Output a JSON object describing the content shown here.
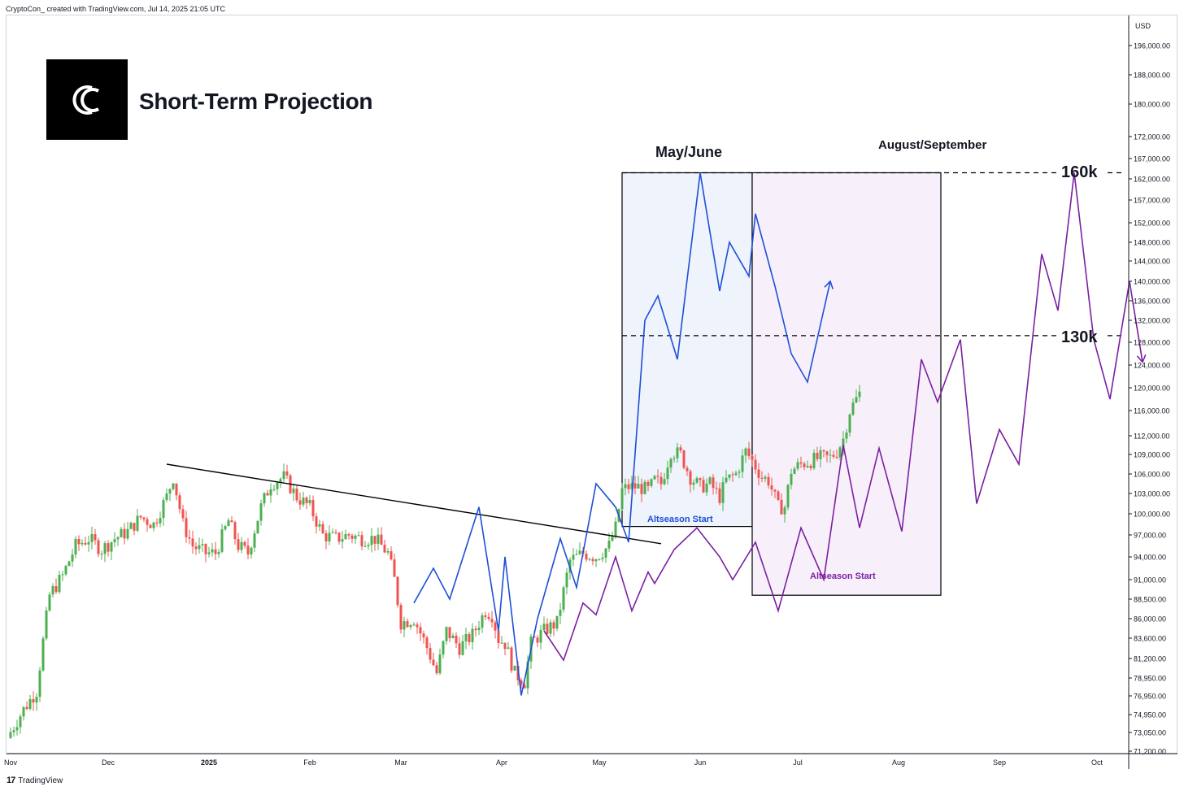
{
  "header": {
    "credit": "CryptoCon_ created with TradingView.com, Jul 14, 2025 21:05 UTC"
  },
  "footer": {
    "brand": "TradingView",
    "logo": "17"
  },
  "brand": {
    "title": "Short-Term Projection",
    "logo_icon": "cc-logo-icon"
  },
  "labels": {
    "may_june": "May/June",
    "aug_sep": "August/September",
    "level_160k": "160k",
    "level_130k": "130k",
    "altseason_1": "Altseason Start",
    "altseason_2": "Altseason Start"
  },
  "colors": {
    "up": "#26a69a",
    "up_fill": "#4caf50",
    "down": "#ef5350",
    "blue": "#1e4fd6",
    "purple": "#7b1fa2",
    "box_blue": "#eef3fc",
    "box_purple": "#f7f0fa"
  },
  "chart_data": {
    "type": "candlestick",
    "title": "Short-Term Projection",
    "currency_label": "USD",
    "y_ticks": [
      {
        "value": 196000,
        "label": "196,000.00"
      },
      {
        "value": 188000,
        "label": "188,000.00"
      },
      {
        "value": 180000,
        "label": "180,000.00"
      },
      {
        "value": 172000,
        "label": "172,000.00"
      },
      {
        "value": 167000,
        "label": "167,000.00"
      },
      {
        "value": 162000,
        "label": "162,000.00"
      },
      {
        "value": 157000,
        "label": "157,000.00"
      },
      {
        "value": 152000,
        "label": "152,000.00"
      },
      {
        "value": 148000,
        "label": "148,000.00"
      },
      {
        "value": 144000,
        "label": "144,000.00"
      },
      {
        "value": 140000,
        "label": "140,000.00"
      },
      {
        "value": 136000,
        "label": "136,000.00"
      },
      {
        "value": 132000,
        "label": "132,000.00"
      },
      {
        "value": 128000,
        "label": "128,000.00"
      },
      {
        "value": 124000,
        "label": "124,000.00"
      },
      {
        "value": 120000,
        "label": "120,000.00"
      },
      {
        "value": 116000,
        "label": "116,000.00"
      },
      {
        "value": 112000,
        "label": "112,000.00"
      },
      {
        "value": 109000,
        "label": "109,000.00"
      },
      {
        "value": 106000,
        "label": "106,000.00"
      },
      {
        "value": 103000,
        "label": "103,000.00"
      },
      {
        "value": 100000,
        "label": "100,000.00"
      },
      {
        "value": 97000,
        "label": "97,000.00"
      },
      {
        "value": 94000,
        "label": "94,000.00"
      },
      {
        "value": 91000,
        "label": "91,000.00"
      },
      {
        "value": 88500,
        "label": "88,500.00"
      },
      {
        "value": 86000,
        "label": "86,000.00"
      },
      {
        "value": 83600,
        "label": "83,600.00"
      },
      {
        "value": 81200,
        "label": "81,200.00"
      },
      {
        "value": 78950,
        "label": "78,950.00"
      },
      {
        "value": 76950,
        "label": "76,950.00"
      },
      {
        "value": 74950,
        "label": "74,950.00"
      },
      {
        "value": 73050,
        "label": "73,050.00"
      },
      {
        "value": 71200,
        "label": "71,200.00"
      }
    ],
    "x_ticks": [
      {
        "day": 0,
        "label": "Nov"
      },
      {
        "day": 30,
        "label": "Dec"
      },
      {
        "day": 61,
        "label": "2025"
      },
      {
        "day": 92,
        "label": "Feb"
      },
      {
        "day": 120,
        "label": "Mar"
      },
      {
        "day": 151,
        "label": "Apr"
      },
      {
        "day": 181,
        "label": "May"
      },
      {
        "day": 212,
        "label": "Jun"
      },
      {
        "day": 242,
        "label": "Jul"
      },
      {
        "day": 273,
        "label": "Aug"
      },
      {
        "day": 304,
        "label": "Sep"
      },
      {
        "day": 334,
        "label": "Oct"
      }
    ],
    "levels": [
      {
        "name": "160k",
        "value": 163500
      },
      {
        "name": "130k",
        "value": 129200
      }
    ],
    "price_path": [
      [
        -1,
        72500
      ],
      [
        4,
        75500
      ],
      [
        8,
        77500
      ],
      [
        12,
        89000
      ],
      [
        16,
        91500
      ],
      [
        20,
        95500
      ],
      [
        24,
        96500
      ],
      [
        28,
        95000
      ],
      [
        32,
        96500
      ],
      [
        36,
        97500
      ],
      [
        40,
        99500
      ],
      [
        44,
        98500
      ],
      [
        48,
        102500
      ],
      [
        50,
        105500
      ],
      [
        53,
        98500
      ],
      [
        56,
        95500
      ],
      [
        60,
        94500
      ],
      [
        63,
        94500
      ],
      [
        67,
        99000
      ],
      [
        70,
        95500
      ],
      [
        73,
        94500
      ],
      [
        77,
        101000
      ],
      [
        80,
        104500
      ],
      [
        84,
        105500
      ],
      [
        88,
        102500
      ],
      [
        92,
        101000
      ],
      [
        96,
        97000
      ],
      [
        100,
        96500
      ],
      [
        104,
        97000
      ],
      [
        108,
        96500
      ],
      [
        112,
        96500
      ],
      [
        116,
        94500
      ],
      [
        118,
        91000
      ],
      [
        120,
        85500
      ],
      [
        124,
        86000
      ],
      [
        128,
        82500
      ],
      [
        131,
        79500
      ],
      [
        134,
        84500
      ],
      [
        138,
        82500
      ],
      [
        142,
        84000
      ],
      [
        146,
        87000
      ],
      [
        148,
        86500
      ],
      [
        150,
        83500
      ],
      [
        152,
        83000
      ],
      [
        155,
        79500
      ],
      [
        158,
        78500
      ],
      [
        160,
        83000
      ],
      [
        164,
        84500
      ],
      [
        168,
        85500
      ],
      [
        172,
        93500
      ],
      [
        176,
        94500
      ],
      [
        180,
        94000
      ],
      [
        184,
        95500
      ],
      [
        186,
        98000
      ],
      [
        188,
        103500
      ],
      [
        190,
        104000
      ],
      [
        193,
        104000
      ],
      [
        196,
        103500
      ],
      [
        198,
        105000
      ],
      [
        200,
        104500
      ],
      [
        203,
        109500
      ],
      [
        206,
        109000
      ],
      [
        209,
        105500
      ],
      [
        212,
        104000
      ],
      [
        215,
        104500
      ],
      [
        218,
        102500
      ],
      [
        220,
        105000
      ],
      [
        223,
        106000
      ],
      [
        226,
        109500
      ],
      [
        228,
        108000
      ],
      [
        231,
        105500
      ],
      [
        233,
        105000
      ],
      [
        236,
        101000
      ],
      [
        238,
        101000
      ],
      [
        240,
        106500
      ],
      [
        243,
        107500
      ],
      [
        246,
        108000
      ],
      [
        249,
        108500
      ],
      [
        252,
        108500
      ],
      [
        254,
        109500
      ],
      [
        256,
        111500
      ],
      [
        258,
        116000
      ],
      [
        261,
        119000
      ]
    ],
    "trendline": [
      [
        48,
        107500
      ],
      [
        200,
        95800
      ]
    ],
    "blue_projection": [
      [
        124,
        88000
      ],
      [
        130,
        92500
      ],
      [
        135,
        88500
      ],
      [
        144,
        101000
      ],
      [
        150,
        84500
      ],
      [
        152,
        94000
      ],
      [
        157,
        77000
      ],
      [
        162,
        86000
      ],
      [
        169,
        96500
      ],
      [
        174,
        90000
      ],
      [
        180,
        104500
      ],
      [
        186,
        101000
      ],
      [
        190,
        96000
      ],
      [
        195,
        132000
      ],
      [
        199,
        137000
      ],
      [
        205,
        125000
      ],
      [
        212,
        163500
      ],
      [
        218,
        138000
      ],
      [
        221,
        148000
      ],
      [
        227,
        141000
      ],
      [
        229,
        154000
      ],
      [
        235,
        139000
      ],
      [
        240,
        126000
      ],
      [
        245,
        121000
      ],
      [
        252,
        140000
      ]
    ],
    "purple_projection": [
      [
        164,
        84500
      ],
      [
        170,
        81000
      ],
      [
        176,
        88000
      ],
      [
        180,
        86500
      ],
      [
        186,
        94000
      ],
      [
        191,
        87000
      ],
      [
        196,
        92000
      ],
      [
        198,
        90500
      ],
      [
        204,
        95000
      ],
      [
        211,
        98000
      ],
      [
        218,
        94000
      ],
      [
        222,
        91000
      ],
      [
        229,
        96000
      ],
      [
        236,
        87000
      ],
      [
        243,
        98000
      ],
      [
        250,
        91000
      ],
      [
        256,
        110500
      ],
      [
        261,
        98000
      ],
      [
        267,
        110000
      ],
      [
        274,
        97500
      ],
      [
        280,
        125000
      ],
      [
        285,
        117500
      ],
      [
        292,
        128500
      ],
      [
        297,
        101500
      ],
      [
        304,
        113000
      ],
      [
        310,
        107500
      ],
      [
        317,
        145500
      ],
      [
        322,
        134000
      ],
      [
        327,
        163500
      ],
      [
        333,
        128500
      ],
      [
        338,
        118000
      ],
      [
        344,
        140000
      ],
      [
        348,
        124500
      ]
    ],
    "boxes": [
      {
        "name": "May/June",
        "day_from": 188,
        "day_to": 228,
        "value_high": 163500,
        "value_low": 98200
      },
      {
        "name": "August/September",
        "day_from": 228,
        "day_to": 286,
        "value_high": 163500,
        "value_low": 89000
      }
    ]
  }
}
